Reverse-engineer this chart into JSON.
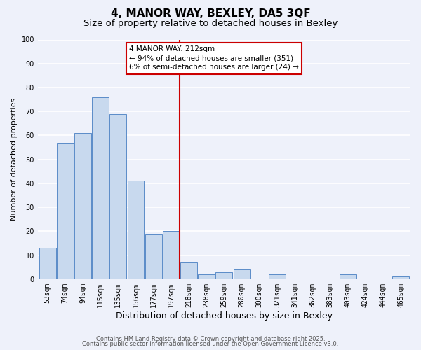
{
  "title": "4, MANOR WAY, BEXLEY, DA5 3QF",
  "subtitle": "Size of property relative to detached houses in Bexley",
  "xlabel": "Distribution of detached houses by size in Bexley",
  "ylabel": "Number of detached properties",
  "categories": [
    "53sqm",
    "74sqm",
    "94sqm",
    "115sqm",
    "135sqm",
    "156sqm",
    "177sqm",
    "197sqm",
    "218sqm",
    "238sqm",
    "259sqm",
    "280sqm",
    "300sqm",
    "321sqm",
    "341sqm",
    "362sqm",
    "383sqm",
    "403sqm",
    "424sqm",
    "444sqm",
    "465sqm"
  ],
  "values": [
    13,
    57,
    61,
    76,
    69,
    41,
    19,
    20,
    7,
    2,
    3,
    4,
    0,
    2,
    0,
    0,
    0,
    2,
    0,
    0,
    1
  ],
  "bar_color": "#c8d9ee",
  "bar_edge_color": "#5b8cc8",
  "ref_line_index": 8,
  "ref_line_color": "#cc0000",
  "annotation_title": "4 MANOR WAY: 212sqm",
  "annotation_line1": "← 94% of detached houses are smaller (351)",
  "annotation_line2": "6% of semi-detached houses are larger (24) →",
  "annotation_box_color": "#ffffff",
  "annotation_box_edge_color": "#cc0000",
  "ylim": [
    0,
    100
  ],
  "yticks": [
    0,
    10,
    20,
    30,
    40,
    50,
    60,
    70,
    80,
    90,
    100
  ],
  "background_color": "#eef1fa",
  "grid_color": "#ffffff",
  "footer1": "Contains HM Land Registry data © Crown copyright and database right 2025.",
  "footer2": "Contains public sector information licensed under the Open Government Licence v3.0.",
  "title_fontsize": 11,
  "subtitle_fontsize": 9.5,
  "xlabel_fontsize": 9,
  "ylabel_fontsize": 8,
  "tick_fontsize": 7,
  "footer_fontsize": 6,
  "annotation_fontsize": 7.5
}
